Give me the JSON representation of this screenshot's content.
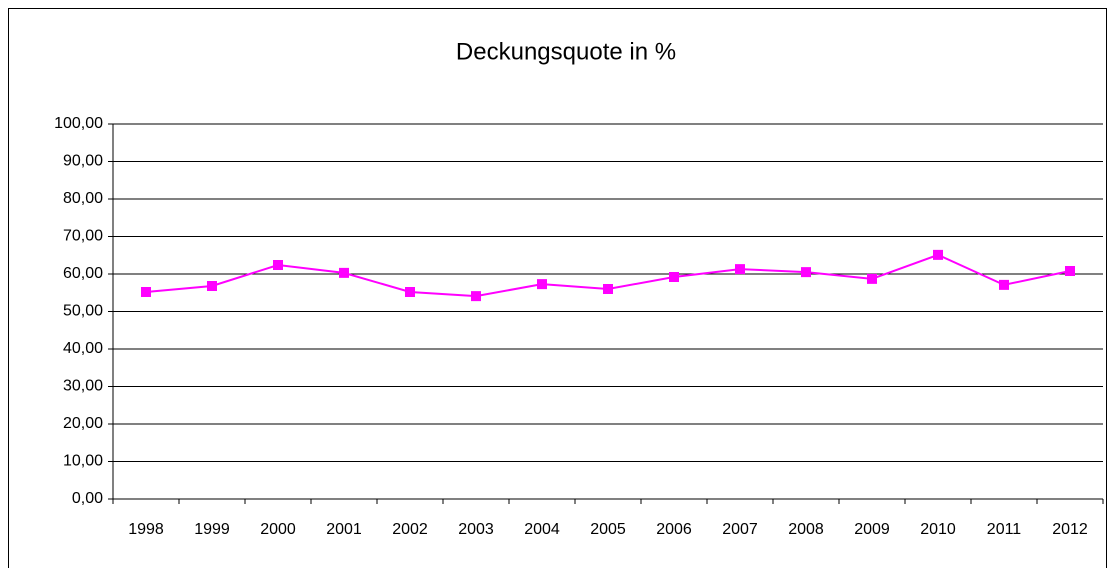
{
  "chart_data": {
    "type": "line",
    "title": "Deckungsquote in %",
    "categories": [
      "1998",
      "1999",
      "2000",
      "2001",
      "2002",
      "2003",
      "2004",
      "2005",
      "2006",
      "2007",
      "2008",
      "2009",
      "2010",
      "2011",
      "2012"
    ],
    "series": [
      {
        "color": "#ff00ff",
        "values": [
          55.2,
          56.8,
          62.4,
          60.3,
          55.2,
          54.1,
          57.3,
          56.0,
          59.2,
          61.3,
          60.5,
          58.7,
          65.1,
          57.1,
          60.8
        ]
      }
    ],
    "ylim": [
      0,
      100
    ],
    "yticks": [
      {
        "value": 0,
        "label": "0,00"
      },
      {
        "value": 10,
        "label": "10,00"
      },
      {
        "value": 20,
        "label": "20,00"
      },
      {
        "value": 30,
        "label": "30,00"
      },
      {
        "value": 40,
        "label": "40,00"
      },
      {
        "value": 50,
        "label": "50,00"
      },
      {
        "value": 60,
        "label": "60,00"
      },
      {
        "value": 70,
        "label": "70,00"
      },
      {
        "value": 80,
        "label": "80,00"
      },
      {
        "value": 90,
        "label": "90,00"
      },
      {
        "value": 100,
        "label": "100,00"
      }
    ],
    "grid": true
  }
}
